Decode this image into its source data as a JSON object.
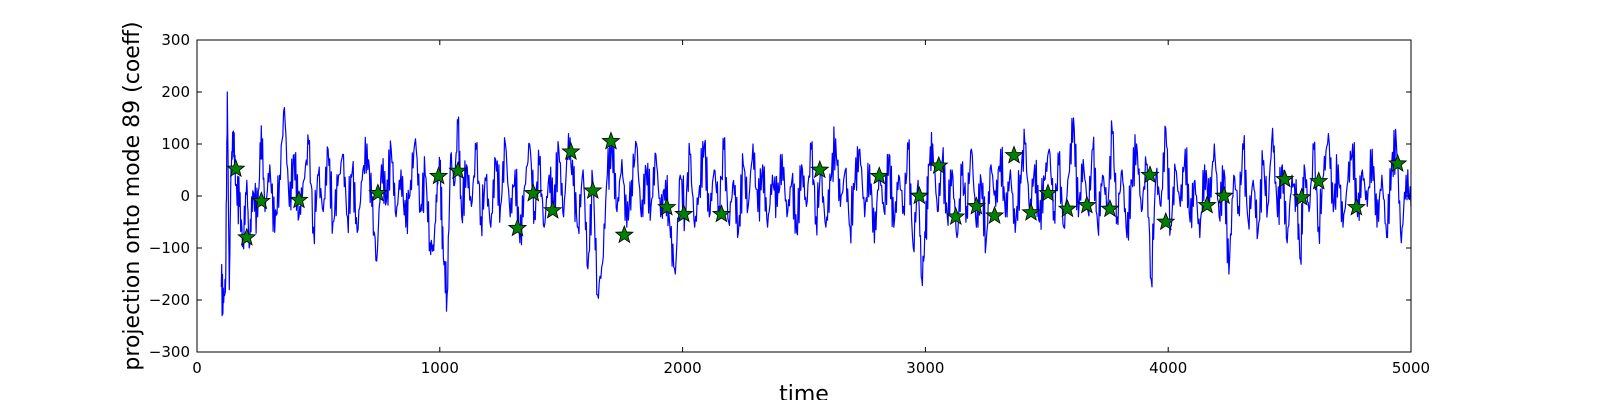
{
  "chart_data": {
    "type": "line",
    "xlabel": "time",
    "ylabel": "projection onto mode 89 (coeff)",
    "xlim": [
      0,
      5000
    ],
    "ylim": [
      -300,
      300
    ],
    "x_ticks": [
      0,
      1000,
      2000,
      3000,
      4000,
      5000
    ],
    "y_ticks": [
      -300,
      -200,
      -100,
      0,
      100,
      200,
      300
    ],
    "x_tick_labels": [
      "0",
      "1000",
      "2000",
      "3000",
      "4000",
      "5000"
    ],
    "y_tick_labels": [
      "−300",
      "−200",
      "−100",
      "0",
      "100",
      "200",
      "300"
    ],
    "grid": false,
    "series": [
      {
        "kind": "line",
        "color": "#0000ff",
        "x_range": [
          100,
          5000
        ],
        "description_points": [
          [
            100,
            -175
          ],
          [
            110,
            -205
          ],
          [
            118,
            -160
          ],
          [
            125,
            200
          ],
          [
            133,
            -180
          ],
          [
            140,
            50
          ],
          [
            150,
            125
          ],
          [
            160,
            20
          ],
          [
            175,
            -20
          ],
          [
            190,
            -90
          ],
          [
            205,
            30
          ],
          [
            215,
            -100
          ],
          [
            230,
            10
          ],
          [
            250,
            -40
          ],
          [
            265,
            135
          ],
          [
            280,
            -30
          ],
          [
            300,
            60
          ],
          [
            320,
            -70
          ],
          [
            340,
            40
          ],
          [
            360,
            170
          ],
          [
            380,
            -20
          ],
          [
            400,
            80
          ],
          [
            420,
            -40
          ],
          [
            440,
            30
          ],
          [
            460,
            100
          ],
          [
            480,
            -60
          ],
          [
            500,
            40
          ],
          [
            520,
            -30
          ],
          [
            540,
            90
          ],
          [
            560,
            -50
          ],
          [
            580,
            20
          ],
          [
            600,
            80
          ],
          [
            620,
            -40
          ],
          [
            640,
            50
          ],
          [
            660,
            -70
          ],
          [
            680,
            30
          ],
          [
            700,
            100
          ],
          [
            720,
            -20
          ],
          [
            740,
            -125
          ],
          [
            760,
            60
          ],
          [
            780,
            -10
          ],
          [
            800,
            90
          ],
          [
            820,
            -40
          ],
          [
            840,
            50
          ],
          [
            860,
            -60
          ],
          [
            880,
            30
          ],
          [
            900,
            110
          ],
          [
            920,
            -30
          ],
          [
            940,
            40
          ],
          [
            960,
            -90
          ],
          [
            975,
            -105
          ],
          [
            990,
            30
          ],
          [
            1000,
            60
          ],
          [
            1015,
            -120
          ],
          [
            1030,
            -190
          ],
          [
            1045,
            80
          ],
          [
            1060,
            20
          ],
          [
            1075,
            140
          ],
          [
            1090,
            -40
          ],
          [
            1110,
            60
          ],
          [
            1130,
            -20
          ],
          [
            1150,
            90
          ],
          [
            1170,
            -40
          ],
          [
            1190,
            30
          ],
          [
            1210,
            -60
          ],
          [
            1230,
            70
          ],
          [
            1250,
            -20
          ],
          [
            1270,
            100
          ],
          [
            1290,
            -40
          ],
          [
            1310,
            50
          ],
          [
            1330,
            -90
          ],
          [
            1350,
            20
          ],
          [
            1370,
            100
          ],
          [
            1390,
            -30
          ],
          [
            1410,
            60
          ],
          [
            1430,
            -60
          ],
          [
            1450,
            40
          ],
          [
            1470,
            -20
          ],
          [
            1490,
            90
          ],
          [
            1510,
            -40
          ],
          [
            1530,
            120
          ],
          [
            1550,
            20
          ],
          [
            1570,
            -60
          ],
          [
            1590,
            50
          ],
          [
            1610,
            -140
          ],
          [
            1630,
            30
          ],
          [
            1650,
            -190
          ],
          [
            1670,
            -130
          ],
          [
            1690,
            40
          ],
          [
            1710,
            100
          ],
          [
            1730,
            -30
          ],
          [
            1750,
            70
          ],
          [
            1770,
            -60
          ],
          [
            1790,
            30
          ],
          [
            1810,
            100
          ],
          [
            1830,
            -40
          ],
          [
            1850,
            50
          ],
          [
            1870,
            -20
          ],
          [
            1890,
            80
          ],
          [
            1910,
            -40
          ],
          [
            1930,
            30
          ],
          [
            1950,
            -80
          ],
          [
            1970,
            -150
          ],
          [
            1990,
            40
          ],
          [
            2010,
            -30
          ],
          [
            2030,
            80
          ],
          [
            2050,
            -60
          ],
          [
            2070,
            20
          ],
          [
            2090,
            100
          ],
          [
            2110,
            -40
          ],
          [
            2130,
            50
          ],
          [
            2150,
            -20
          ],
          [
            2170,
            90
          ],
          [
            2190,
            -50
          ],
          [
            2210,
            30
          ],
          [
            2230,
            -70
          ],
          [
            2250,
            60
          ],
          [
            2270,
            -20
          ],
          [
            2290,
            100
          ],
          [
            2310,
            -30
          ],
          [
            2330,
            60
          ],
          [
            2350,
            -60
          ],
          [
            2370,
            40
          ],
          [
            2390,
            -20
          ],
          [
            2410,
            80
          ],
          [
            2430,
            -40
          ],
          [
            2450,
            30
          ],
          [
            2470,
            -70
          ],
          [
            2490,
            60
          ],
          [
            2510,
            -20
          ],
          [
            2530,
            90
          ],
          [
            2550,
            -40
          ],
          [
            2570,
            40
          ],
          [
            2590,
            -60
          ],
          [
            2610,
            30
          ],
          [
            2630,
            110
          ],
          [
            2650,
            -20
          ],
          [
            2670,
            50
          ],
          [
            2690,
            -60
          ],
          [
            2710,
            30
          ],
          [
            2730,
            90
          ],
          [
            2750,
            -40
          ],
          [
            2770,
            60
          ],
          [
            2790,
            -90
          ],
          [
            2810,
            50
          ],
          [
            2830,
            -30
          ],
          [
            2850,
            80
          ],
          [
            2870,
            -60
          ],
          [
            2890,
            40
          ],
          [
            2910,
            -20
          ],
          [
            2930,
            90
          ],
          [
            2950,
            -100
          ],
          [
            2970,
            30
          ],
          [
            2985,
            -160
          ],
          [
            3000,
            -80
          ],
          [
            3015,
            60
          ],
          [
            3030,
            100
          ],
          [
            3050,
            -30
          ],
          [
            3070,
            70
          ],
          [
            3090,
            -40
          ],
          [
            3110,
            50
          ],
          [
            3130,
            -80
          ],
          [
            3150,
            40
          ],
          [
            3170,
            -20
          ],
          [
            3190,
            90
          ],
          [
            3210,
            -60
          ],
          [
            3230,
            30
          ],
          [
            3250,
            -90
          ],
          [
            3270,
            60
          ],
          [
            3290,
            -20
          ],
          [
            3310,
            90
          ],
          [
            3330,
            -40
          ],
          [
            3350,
            50
          ],
          [
            3370,
            -70
          ],
          [
            3390,
            40
          ],
          [
            3410,
            100
          ],
          [
            3430,
            -30
          ],
          [
            3450,
            60
          ],
          [
            3470,
            -50
          ],
          [
            3490,
            30
          ],
          [
            3510,
            90
          ],
          [
            3530,
            -30
          ],
          [
            3550,
            60
          ],
          [
            3570,
            -60
          ],
          [
            3590,
            40
          ],
          [
            3610,
            150
          ],
          [
            3630,
            -40
          ],
          [
            3650,
            70
          ],
          [
            3670,
            -30
          ],
          [
            3690,
            90
          ],
          [
            3710,
            -60
          ],
          [
            3730,
            40
          ],
          [
            3750,
            -20
          ],
          [
            3770,
            120
          ],
          [
            3790,
            -40
          ],
          [
            3810,
            50
          ],
          [
            3830,
            -80
          ],
          [
            3850,
            30
          ],
          [
            3870,
            100
          ],
          [
            3890,
            -30
          ],
          [
            3910,
            60
          ],
          [
            3930,
            -160
          ],
          [
            3950,
            40
          ],
          [
            3970,
            -20
          ],
          [
            3990,
            130
          ],
          [
            4010,
            -60
          ],
          [
            4030,
            50
          ],
          [
            4050,
            -20
          ],
          [
            4070,
            90
          ],
          [
            4090,
            -50
          ],
          [
            4110,
            30
          ],
          [
            4130,
            -80
          ],
          [
            4150,
            60
          ],
          [
            4170,
            -20
          ],
          [
            4190,
            100
          ],
          [
            4210,
            -40
          ],
          [
            4230,
            50
          ],
          [
            4250,
            -150
          ],
          [
            4270,
            40
          ],
          [
            4290,
            -20
          ],
          [
            4310,
            90
          ],
          [
            4330,
            -50
          ],
          [
            4350,
            30
          ],
          [
            4370,
            -70
          ],
          [
            4390,
            60
          ],
          [
            4410,
            -20
          ],
          [
            4430,
            130
          ],
          [
            4450,
            -40
          ],
          [
            4470,
            60
          ],
          [
            4490,
            -90
          ],
          [
            4510,
            40
          ],
          [
            4530,
            -20
          ],
          [
            4545,
            -120
          ],
          [
            4560,
            60
          ],
          [
            4580,
            -30
          ],
          [
            4600,
            90
          ],
          [
            4620,
            -60
          ],
          [
            4640,
            40
          ],
          [
            4660,
            120
          ],
          [
            4680,
            -30
          ],
          [
            4700,
            60
          ],
          [
            4720,
            -60
          ],
          [
            4740,
            30
          ],
          [
            4760,
            100
          ],
          [
            4780,
            -40
          ],
          [
            4800,
            50
          ],
          [
            4820,
            -20
          ],
          [
            4840,
            90
          ],
          [
            4860,
            -60
          ],
          [
            4880,
            40
          ],
          [
            4900,
            -80
          ],
          [
            4920,
            60
          ],
          [
            4940,
            100
          ],
          [
            4960,
            -90
          ],
          [
            4980,
            40
          ],
          [
            5000,
            -20
          ]
        ]
      },
      {
        "kind": "markers",
        "marker": "star",
        "color": "#008000",
        "edge_color": "#000000",
        "points": [
          [
            160,
            52
          ],
          [
            205,
            -80
          ],
          [
            265,
            -10
          ],
          [
            420,
            -8
          ],
          [
            745,
            5
          ],
          [
            995,
            38
          ],
          [
            1075,
            48
          ],
          [
            1320,
            -62
          ],
          [
            1385,
            5
          ],
          [
            1465,
            -28
          ],
          [
            1540,
            85
          ],
          [
            1630,
            10
          ],
          [
            1705,
            105
          ],
          [
            1760,
            -75
          ],
          [
            1935,
            -22
          ],
          [
            2005,
            -35
          ],
          [
            2160,
            -35
          ],
          [
            2565,
            50
          ],
          [
            2810,
            38
          ],
          [
            2975,
            0
          ],
          [
            3055,
            58
          ],
          [
            3125,
            -40
          ],
          [
            3210,
            -20
          ],
          [
            3285,
            -38
          ],
          [
            3365,
            78
          ],
          [
            3435,
            -32
          ],
          [
            3505,
            5
          ],
          [
            3585,
            -25
          ],
          [
            3665,
            -18
          ],
          [
            3760,
            -25
          ],
          [
            3925,
            40
          ],
          [
            3990,
            -50
          ],
          [
            4160,
            -18
          ],
          [
            4230,
            0
          ],
          [
            4480,
            32
          ],
          [
            4550,
            -3
          ],
          [
            4620,
            28
          ],
          [
            4775,
            -22
          ],
          [
            4945,
            62
          ]
        ]
      }
    ]
  }
}
